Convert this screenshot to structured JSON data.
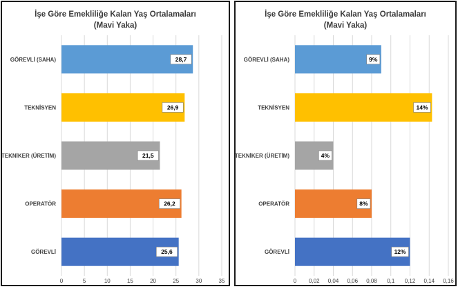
{
  "chart_data": [
    {
      "type": "bar",
      "orientation": "horizontal",
      "title": "İşe Göre Emekliliğe Kalan Yaş Ortalamaları",
      "subtitle": "(Mavi Yaka)",
      "categories": [
        "GÖREVLİ (SAHA)",
        "TEKNİSYEN",
        "TEKNİKER (ÜRETİM)",
        "OPERATÖR",
        "GÖREVLİ"
      ],
      "values": [
        28.7,
        26.9,
        21.5,
        26.2,
        25.6
      ],
      "data_labels": [
        "28,7",
        "26,9",
        "21,5",
        "26,2",
        "25,6"
      ],
      "colors": [
        "#5b9bd5",
        "#ffc000",
        "#a5a5a5",
        "#ed7d31",
        "#4472c4"
      ],
      "xlim": [
        0,
        35
      ],
      "ticks": [
        0,
        5,
        10,
        15,
        20,
        25,
        30,
        35
      ],
      "tick_labels": [
        "0",
        "5",
        "10",
        "15",
        "20",
        "25",
        "30",
        "35"
      ],
      "grid": true
    },
    {
      "type": "bar",
      "orientation": "horizontal",
      "title": "İşe Göre Emekliliğe Kalan Yaş Ortalamaları",
      "subtitle": "(Mavi Yaka)",
      "categories": [
        "GÖREVLİ (SAHA)",
        "TEKNİSYEN",
        "TEKNİKER (ÜRETİM)",
        "OPERATÖR",
        "GÖREVLİ"
      ],
      "values": [
        0.09,
        0.143,
        0.04,
        0.08,
        0.12
      ],
      "data_labels": [
        "9%",
        "14%",
        "4%",
        "8%",
        "12%"
      ],
      "colors": [
        "#5b9bd5",
        "#ffc000",
        "#a5a5a5",
        "#ed7d31",
        "#4472c4"
      ],
      "xlim": [
        0,
        0.16
      ],
      "ticks": [
        0,
        0.02,
        0.04,
        0.06,
        0.08,
        0.1,
        0.12,
        0.14,
        0.16
      ],
      "tick_labels": [
        "0",
        "0,02",
        "0,04",
        "0,06",
        "0,08",
        "0,1",
        "0,12",
        "0,14",
        "0,16"
      ],
      "grid": true
    }
  ],
  "colors": {
    "gridline": "#d9d9d9",
    "axis_text": "#404040",
    "border": "#1a1a1a"
  }
}
